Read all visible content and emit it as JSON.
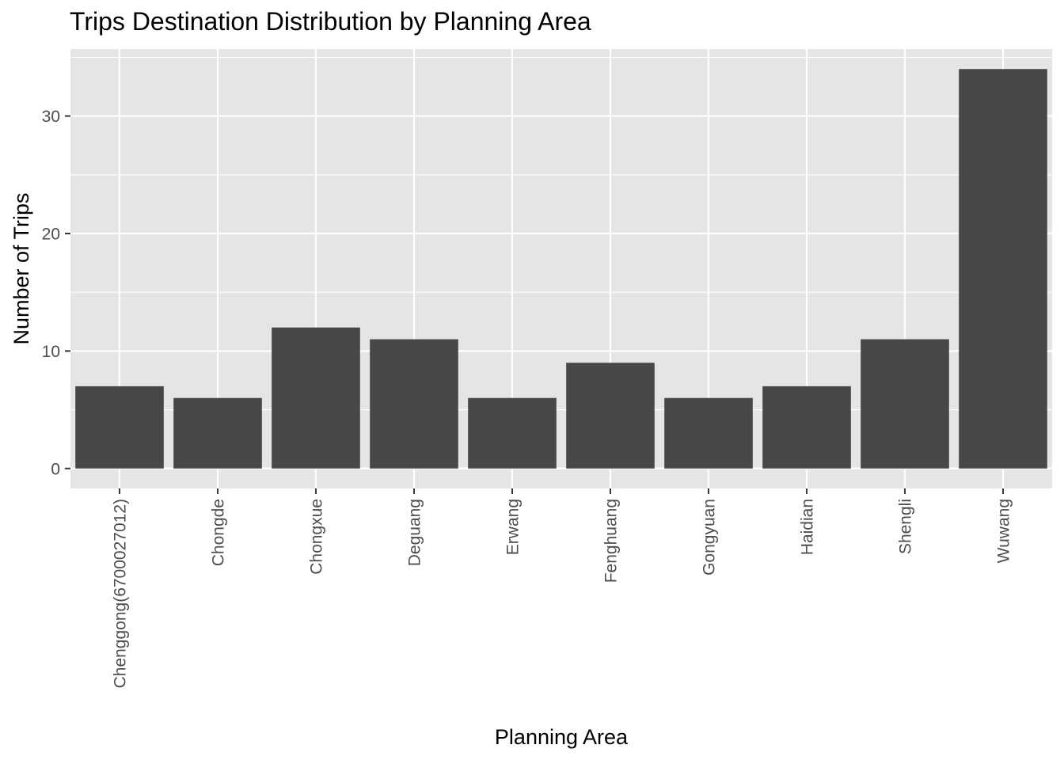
{
  "chart_data": {
    "type": "bar",
    "title": "Trips Destination Distribution by Planning Area",
    "xlabel": "Planning Area",
    "ylabel": "Number of Trips",
    "categories": [
      "Chenggong(6700027012)",
      "Chongde",
      "Chongxue",
      "Deguang",
      "Erwang",
      "Fenghuang",
      "Gongyuan",
      "Haidian",
      "Shengli",
      "Wuwang"
    ],
    "values": [
      7,
      6,
      12,
      11,
      6,
      9,
      6,
      7,
      11,
      34
    ],
    "ylim": [
      -1.7,
      35.7
    ],
    "yticks": [
      0,
      10,
      20,
      30
    ],
    "grid": true,
    "legend": "none",
    "colors": {
      "bar": "#474747",
      "panel": "#e5e5e5",
      "grid": "#ffffff",
      "tick_text": "#4d4d4d",
      "tick_mark": "#333333"
    }
  }
}
